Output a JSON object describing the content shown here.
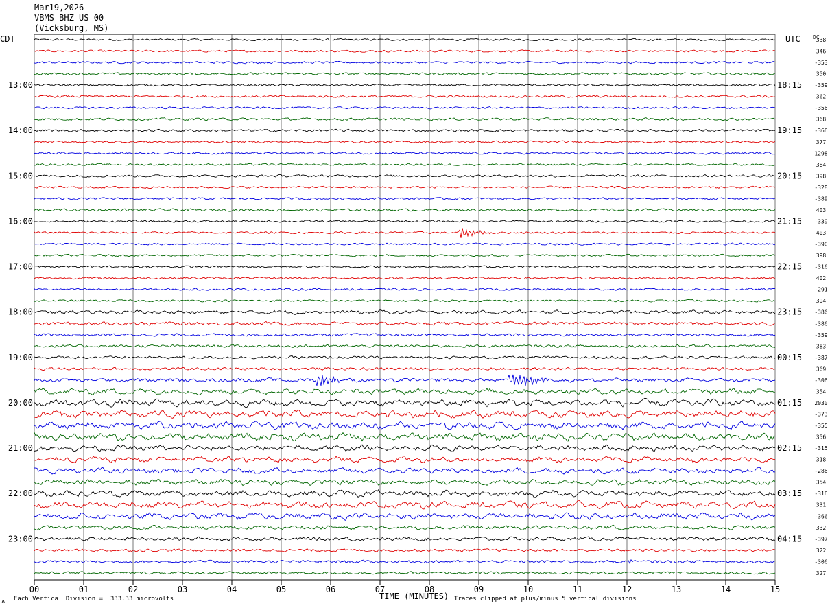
{
  "header": {
    "date": "Mar19,2026",
    "station": "VBMS BHZ US 00",
    "location": "(Vicksburg, MS)"
  },
  "left_zone_label": "CDT",
  "right_zone_label": "UTC",
  "dc_label": "DC",
  "footer": {
    "scale_note": "Each Vertical Division =  333.33 microvolts",
    "clip_note": "Traces clipped at plus/minus 5 vertical divisions",
    "corner_mark": "ʌ"
  },
  "chart_data": {
    "type": "helicorder",
    "xlabel": "TIME (MINUTES)",
    "x_ticks": [
      "00",
      "01",
      "02",
      "03",
      "04",
      "05",
      "06",
      "07",
      "08",
      "09",
      "10",
      "11",
      "12",
      "13",
      "14",
      "15"
    ],
    "xlim": [
      0,
      15
    ],
    "trace_colors": [
      "#000000",
      "#e00000",
      "#0000e0",
      "#006600"
    ],
    "left_time_labels": [
      {
        "row": 4,
        "label": "13:00"
      },
      {
        "row": 8,
        "label": "14:00"
      },
      {
        "row": 12,
        "label": "15:00"
      },
      {
        "row": 16,
        "label": "16:00"
      },
      {
        "row": 20,
        "label": "17:00"
      },
      {
        "row": 24,
        "label": "18:00"
      },
      {
        "row": 28,
        "label": "19:00"
      },
      {
        "row": 32,
        "label": "20:00"
      },
      {
        "row": 36,
        "label": "21:00"
      },
      {
        "row": 40,
        "label": "22:00"
      },
      {
        "row": 44,
        "label": "23:00"
      }
    ],
    "right_time_labels": [
      {
        "row": 4,
        "label": "18:15"
      },
      {
        "row": 8,
        "label": "19:15"
      },
      {
        "row": 12,
        "label": "20:15"
      },
      {
        "row": 16,
        "label": "21:15"
      },
      {
        "row": 20,
        "label": "22:15"
      },
      {
        "row": 24,
        "label": "23:15"
      },
      {
        "row": 28,
        "label": "00:15"
      },
      {
        "row": 32,
        "label": "01:15"
      },
      {
        "row": 36,
        "label": "02:15"
      },
      {
        "row": 40,
        "label": "03:15"
      },
      {
        "row": 44,
        "label": "04:15"
      }
    ],
    "dc_offsets": [
      "338",
      "346",
      "-353",
      "350",
      "-359",
      "362",
      "-356",
      "368",
      "-366",
      "377",
      "1298",
      "384",
      "398",
      "-328",
      "-389",
      "403",
      "-339",
      "403",
      "-390",
      "398",
      "-316",
      "402",
      "-291",
      "394",
      "-386",
      "-386",
      "-359",
      "383",
      "-387",
      "369",
      "-306",
      "354",
      "2030",
      "-373",
      "-355",
      "356",
      "-315",
      "318",
      "-286",
      "354",
      "-316",
      "331",
      "-366",
      "332",
      "-397",
      "322",
      "-306",
      "327"
    ],
    "row_activity": [
      1,
      1,
      1,
      1.1,
      1,
      1.1,
      1,
      1.2,
      1.2,
      1,
      1,
      1,
      1.2,
      1,
      1,
      1.2,
      1,
      1,
      1,
      1,
      1,
      1,
      1,
      1,
      1.5,
      1.4,
      1.3,
      1.3,
      1.3,
      1.3,
      1.5,
      2,
      2.3,
      2.4,
      2.4,
      2.5,
      2,
      2,
      2,
      2,
      2.2,
      2.3,
      2.2,
      1.6,
      1.5,
      1.3,
      1.3,
      1.2
    ],
    "events": [
      {
        "row": 17,
        "minute": 8.6,
        "duration_min": 0.7,
        "amp_div": 5
      },
      {
        "row": 30,
        "minute": 5.7,
        "duration_min": 0.6,
        "amp_div": 8
      },
      {
        "row": 30,
        "minute": 9.6,
        "duration_min": 0.9,
        "amp_div": 8
      },
      {
        "row": 46,
        "minute": 12.0,
        "duration_min": 0.2,
        "amp_div": 4
      }
    ]
  }
}
